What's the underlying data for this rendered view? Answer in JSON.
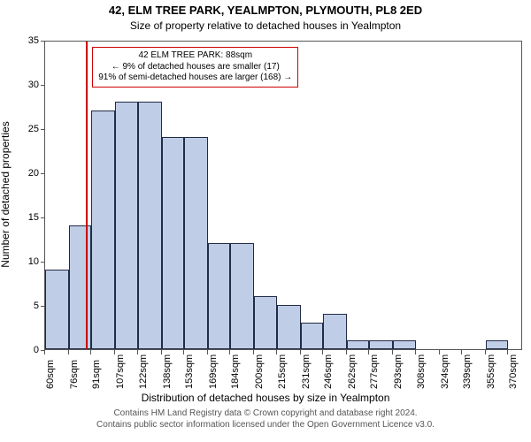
{
  "title": "42, ELM TREE PARK, YEALMPTON, PLYMOUTH, PL8 2ED",
  "subtitle": "Size of property relative to detached houses in Yealmpton",
  "ylabel": "Number of detached properties",
  "xlabel": "Distribution of detached houses by size in Yealmpton",
  "footer_line1": "Contains HM Land Registry data © Crown copyright and database right 2024.",
  "footer_line2": "Contains public sector information licensed under the Open Government Licence v3.0.",
  "chart": {
    "type": "histogram",
    "background_color": "#ffffff",
    "axis_color": "#555555",
    "bar_fill": "#c0cde6",
    "bar_stroke": "#222c44",
    "marker_color": "#cc0000",
    "ylim": [
      0,
      35
    ],
    "ytick_step": 5,
    "yticks": [
      0,
      5,
      10,
      15,
      20,
      25,
      30,
      35
    ],
    "xticks": [
      "60sqm",
      "76sqm",
      "91sqm",
      "107sqm",
      "122sqm",
      "138sqm",
      "153sqm",
      "169sqm",
      "184sqm",
      "200sqm",
      "215sqm",
      "231sqm",
      "246sqm",
      "262sqm",
      "277sqm",
      "293sqm",
      "308sqm",
      "324sqm",
      "339sqm",
      "355sqm",
      "370sqm"
    ],
    "xtick_positions": [
      60,
      76,
      91,
      107,
      122,
      138,
      153,
      169,
      184,
      200,
      215,
      231,
      246,
      262,
      277,
      293,
      308,
      324,
      339,
      355,
      370
    ],
    "x_range": [
      60,
      380
    ],
    "bars": [
      {
        "x0": 60,
        "x1": 76,
        "count": 9
      },
      {
        "x0": 76,
        "x1": 91,
        "count": 14
      },
      {
        "x0": 91,
        "x1": 107,
        "count": 27
      },
      {
        "x0": 107,
        "x1": 122,
        "count": 28
      },
      {
        "x0": 122,
        "x1": 138,
        "count": 28
      },
      {
        "x0": 138,
        "x1": 153,
        "count": 24
      },
      {
        "x0": 153,
        "x1": 169,
        "count": 24
      },
      {
        "x0": 169,
        "x1": 184,
        "count": 12
      },
      {
        "x0": 184,
        "x1": 200,
        "count": 12
      },
      {
        "x0": 200,
        "x1": 215,
        "count": 6
      },
      {
        "x0": 215,
        "x1": 231,
        "count": 5
      },
      {
        "x0": 231,
        "x1": 246,
        "count": 3
      },
      {
        "x0": 246,
        "x1": 262,
        "count": 4
      },
      {
        "x0": 262,
        "x1": 277,
        "count": 1
      },
      {
        "x0": 277,
        "x1": 293,
        "count": 1
      },
      {
        "x0": 293,
        "x1": 308,
        "count": 1
      },
      {
        "x0": 308,
        "x1": 324,
        "count": 0
      },
      {
        "x0": 324,
        "x1": 339,
        "count": 0
      },
      {
        "x0": 339,
        "x1": 355,
        "count": 0
      },
      {
        "x0": 355,
        "x1": 370,
        "count": 1
      }
    ],
    "marker_x": 88,
    "annotation": {
      "line1": "42 ELM TREE PARK: 88sqm",
      "line2": "← 9% of detached houses are smaller (17)",
      "line3": "91% of semi-detached houses are larger (168) →"
    },
    "title_fontsize": 13,
    "label_fontsize": 12,
    "tick_fontsize": 11,
    "footer_fontsize": 10
  }
}
